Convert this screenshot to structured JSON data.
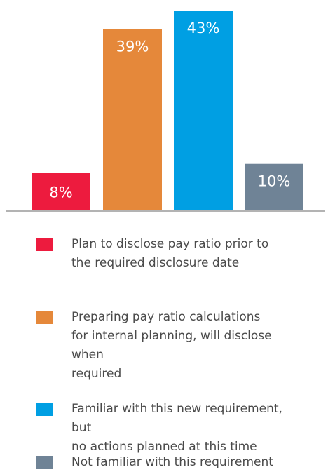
{
  "chart_data": {
    "type": "bar",
    "categories": [
      "Plan to disclose pay ratio prior to\nthe required disclosure date",
      "Preparing pay ratio calculations\nfor internal planning, will disclose when\nrequired",
      "Familiar with this new requirement, but\nno actions planned at this time",
      "Not familiar with this requirement"
    ],
    "values": [
      8,
      39,
      43,
      10
    ],
    "value_labels": [
      "8%",
      "39%",
      "43%",
      "10%"
    ],
    "colors": [
      "#ed1b3e",
      "#e5883a",
      "#009fe3",
      "#6f8396"
    ],
    "ylim": [
      0,
      43
    ],
    "grid": false,
    "legend_position": "bottom",
    "title": "",
    "xlabel": "",
    "ylabel": ""
  }
}
